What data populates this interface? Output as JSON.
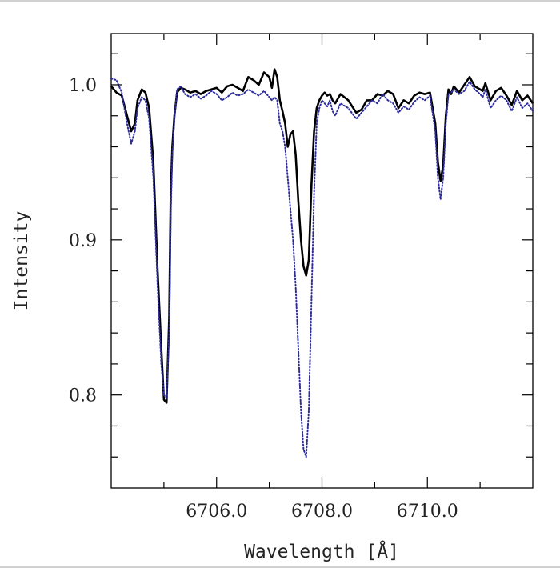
{
  "chart_data": {
    "type": "line",
    "xlabel": "Wavelength [Å]",
    "ylabel": "Intensity",
    "xlim": [
      6704.0,
      6712.0
    ],
    "ylim": [
      0.74,
      1.033
    ],
    "x_ticks": [
      6706.0,
      6708.0,
      6710.0
    ],
    "x_tick_labels": [
      "6706.0",
      "6708.0",
      "6710.0"
    ],
    "y_ticks": [
      0.8,
      0.9,
      1.0
    ],
    "y_tick_labels": [
      "0.8",
      "0.9",
      "1.0"
    ],
    "grid": false,
    "series": [
      {
        "style": "solid",
        "color": "#000000",
        "x": [
          6704.0,
          6704.1,
          6704.2,
          6704.3,
          6704.38,
          6704.45,
          6704.5,
          6704.58,
          6704.65,
          6704.72,
          6704.8,
          6704.88,
          6704.95,
          6705.0,
          6705.05,
          6705.1,
          6705.13,
          6705.16,
          6705.2,
          6705.25,
          6705.32,
          6705.4,
          6705.5,
          6705.6,
          6705.7,
          6705.8,
          6705.9,
          6706.0,
          6706.1,
          6706.2,
          6706.3,
          6706.4,
          6706.5,
          6706.6,
          6706.7,
          6706.8,
          6706.9,
          6707.0,
          6707.05,
          6707.1,
          6707.15,
          6707.2,
          6707.25,
          6707.3,
          6707.35,
          6707.4,
          6707.45,
          6707.5,
          6707.55,
          6707.6,
          6707.65,
          6707.7,
          6707.75,
          6707.8,
          6707.85,
          6707.9,
          6707.95,
          6708.0,
          6708.05,
          6708.1,
          6708.15,
          6708.2,
          6708.25,
          6708.35,
          6708.5,
          6708.65,
          6708.75,
          6708.85,
          6708.95,
          6709.05,
          6709.15,
          6709.25,
          6709.35,
          6709.45,
          6709.55,
          6709.65,
          6709.75,
          6709.85,
          6709.95,
          6710.05,
          6710.15,
          6710.2,
          6710.25,
          6710.3,
          6710.35,
          6710.4,
          6710.45,
          6710.5,
          6710.6,
          6710.7,
          6710.8,
          6710.9,
          6711.0,
          6711.05,
          6711.1,
          6711.2,
          6711.3,
          6711.4,
          6711.5,
          6711.6,
          6711.7,
          6711.8,
          6711.9,
          6712.0
        ],
        "y": [
          0.999,
          0.995,
          0.993,
          0.98,
          0.97,
          0.975,
          0.99,
          0.997,
          0.995,
          0.985,
          0.95,
          0.88,
          0.83,
          0.797,
          0.795,
          0.85,
          0.93,
          0.96,
          0.98,
          0.995,
          0.998,
          0.997,
          0.995,
          0.996,
          0.994,
          0.996,
          0.997,
          0.998,
          0.995,
          0.999,
          1.0,
          0.998,
          0.996,
          1.005,
          1.003,
          1.0,
          1.008,
          1.005,
          0.998,
          1.01,
          1.005,
          0.99,
          0.983,
          0.975,
          0.96,
          0.968,
          0.97,
          0.955,
          0.925,
          0.9,
          0.883,
          0.877,
          0.887,
          0.935,
          0.97,
          0.985,
          0.99,
          0.993,
          0.995,
          0.993,
          0.994,
          0.99,
          0.988,
          0.994,
          0.99,
          0.982,
          0.984,
          0.99,
          0.99,
          0.994,
          0.993,
          0.996,
          0.994,
          0.985,
          0.99,
          0.988,
          0.993,
          0.995,
          0.994,
          0.995,
          0.975,
          0.95,
          0.938,
          0.948,
          0.98,
          0.997,
          0.994,
          0.999,
          0.995,
          1.0,
          1.005,
          0.999,
          0.997,
          0.996,
          1.001,
          0.99,
          0.996,
          0.998,
          0.993,
          0.987,
          0.996,
          0.99,
          0.993,
          0.988
        ]
      },
      {
        "style": "dotted",
        "color": "#2c2c9e",
        "x": [
          6704.0,
          6704.1,
          6704.2,
          6704.3,
          6704.38,
          6704.45,
          6704.5,
          6704.58,
          6704.65,
          6704.72,
          6704.8,
          6704.88,
          6704.95,
          6705.0,
          6705.05,
          6705.1,
          6705.13,
          6705.16,
          6705.2,
          6705.25,
          6705.32,
          6705.4,
          6705.5,
          6705.6,
          6705.7,
          6705.8,
          6705.9,
          6706.0,
          6706.1,
          6706.2,
          6706.3,
          6706.4,
          6706.5,
          6706.6,
          6706.7,
          6706.8,
          6706.9,
          6707.0,
          6707.05,
          6707.1,
          6707.15,
          6707.2,
          6707.25,
          6707.3,
          6707.35,
          6707.4,
          6707.45,
          6707.5,
          6707.55,
          6707.6,
          6707.65,
          6707.7,
          6707.75,
          6707.8,
          6707.85,
          6707.9,
          6707.95,
          6708.0,
          6708.05,
          6708.1,
          6708.15,
          6708.2,
          6708.25,
          6708.35,
          6708.5,
          6708.65,
          6708.75,
          6708.85,
          6708.95,
          6709.05,
          6709.15,
          6709.25,
          6709.35,
          6709.45,
          6709.55,
          6709.65,
          6709.75,
          6709.85,
          6709.95,
          6710.05,
          6710.15,
          6710.2,
          6710.25,
          6710.3,
          6710.35,
          6710.4,
          6710.45,
          6710.5,
          6710.6,
          6710.7,
          6710.8,
          6710.9,
          6711.0,
          6711.05,
          6711.1,
          6711.2,
          6711.3,
          6711.4,
          6711.5,
          6711.6,
          6711.7,
          6711.8,
          6711.9,
          6712.0
        ],
        "y": [
          1.004,
          1.003,
          0.995,
          0.975,
          0.962,
          0.97,
          0.985,
          0.992,
          0.99,
          0.978,
          0.94,
          0.87,
          0.82,
          0.8,
          0.798,
          0.84,
          0.915,
          0.955,
          0.978,
          0.997,
          0.999,
          0.994,
          0.992,
          0.994,
          0.991,
          0.993,
          0.996,
          0.994,
          0.99,
          0.992,
          0.995,
          0.993,
          0.994,
          0.997,
          0.995,
          0.993,
          0.996,
          0.992,
          0.99,
          0.992,
          0.99,
          0.975,
          0.97,
          0.96,
          0.94,
          0.92,
          0.9,
          0.87,
          0.83,
          0.79,
          0.765,
          0.76,
          0.79,
          0.86,
          0.93,
          0.975,
          0.985,
          0.99,
          0.988,
          0.986,
          0.99,
          0.983,
          0.98,
          0.988,
          0.985,
          0.978,
          0.982,
          0.986,
          0.99,
          0.988,
          0.994,
          0.99,
          0.988,
          0.982,
          0.986,
          0.984,
          0.989,
          0.992,
          0.99,
          0.993,
          0.97,
          0.94,
          0.926,
          0.94,
          0.975,
          0.994,
          0.995,
          0.997,
          0.994,
          0.996,
          1.002,
          0.997,
          0.994,
          0.992,
          0.997,
          0.985,
          0.99,
          0.993,
          0.99,
          0.983,
          0.992,
          0.985,
          0.988,
          0.983
        ]
      }
    ]
  }
}
